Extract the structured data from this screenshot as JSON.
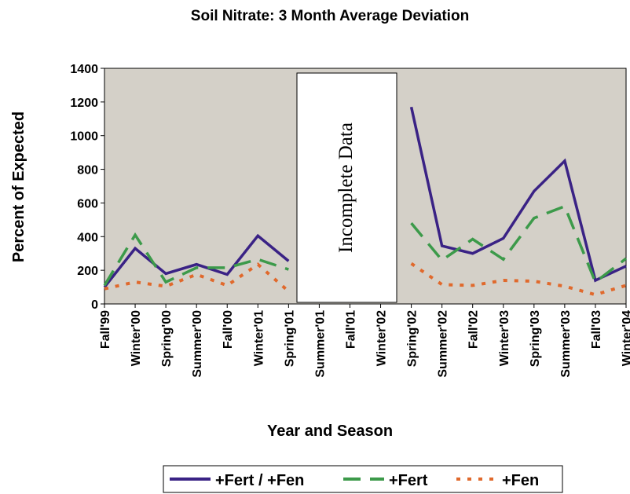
{
  "chart_data": {
    "type": "line",
    "title": "Soil Nitrate: 3 Month Average Deviation",
    "x_label": "Year and Season",
    "y_label": "Percent of Expected",
    "annotation": "Incomplete Data",
    "categories": [
      "Fall'99",
      "Winter'00",
      "Spring'00",
      "Summer'00",
      "Fall'00",
      "Winter'01",
      "Spring'01",
      "Summer'01",
      "Fall'01",
      "Winter'02",
      "Spring'02",
      "Summer'02",
      "Fall'02",
      "Winter'03",
      "Spring'03",
      "Summer'03",
      "Fall'03",
      "Winter'04"
    ],
    "series": [
      {
        "name": "+Fert / +Fen",
        "color": "#3a2285",
        "dash": "solid",
        "values": [
          100,
          330,
          180,
          235,
          175,
          405,
          255,
          null,
          null,
          null,
          1170,
          345,
          300,
          390,
          670,
          850,
          140,
          225
        ]
      },
      {
        "name": "+Fert",
        "color": "#3c9a4a",
        "dash": "dash",
        "values": [
          110,
          410,
          130,
          215,
          215,
          265,
          205,
          null,
          null,
          null,
          480,
          260,
          385,
          265,
          510,
          580,
          130,
          270
        ]
      },
      {
        "name": "+Fen",
        "color": "#e0692c",
        "dash": "dot",
        "values": [
          90,
          130,
          105,
          175,
          110,
          235,
          75,
          null,
          null,
          null,
          240,
          115,
          110,
          140,
          135,
          105,
          55,
          110
        ]
      }
    ],
    "ylim": [
      0,
      1400
    ],
    "yticks": [
      0,
      200,
      400,
      600,
      800,
      1000,
      1200,
      1400
    ],
    "grid": false,
    "background": "#d4d0c8",
    "legend": "bottom"
  }
}
